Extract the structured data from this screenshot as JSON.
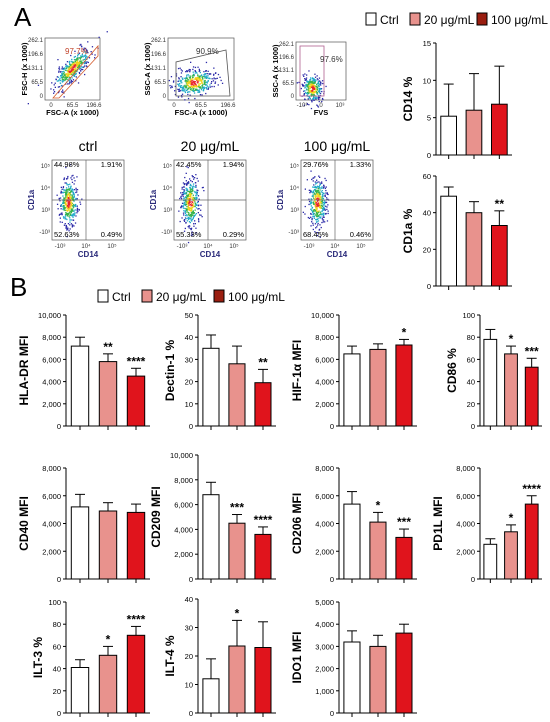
{
  "panel_labels": {
    "a": "A",
    "b": "B"
  },
  "legend": {
    "items": [
      "Ctrl",
      "20 μg/mL",
      "100 μg/mL"
    ],
    "colors": [
      "#ffffff",
      "#e8928d",
      "#e0141c"
    ]
  },
  "flow": {
    "gating": [
      {
        "ylabel": "FSC-H (x 1000)",
        "xlabel": "FSC-A (x 1000)",
        "gate": "97.7%",
        "yticks": [
          "262.1",
          "196.6",
          "131.1",
          "65.5",
          "0"
        ],
        "xticks": [
          "0",
          "65.5",
          "196.6"
        ]
      },
      {
        "ylabel": "SSC-A (x 1000)",
        "xlabel": "FSC-A (x 1000)",
        "gate": "90.9%",
        "yticks": [
          "262.1",
          "196.6",
          "131.1",
          "65.5",
          "0"
        ],
        "xticks": [
          "0",
          "65.5",
          "196.6"
        ]
      },
      {
        "ylabel": "SSC-A (x 1000)",
        "xlabel": "FVS",
        "gate": "97.6%",
        "yticks": [
          "262.1",
          "196.6",
          "131.1",
          "65.5",
          "0"
        ],
        "xticks": [
          "-10³",
          "0",
          "10³"
        ]
      }
    ],
    "quadrants": [
      {
        "title": "ctrl",
        "ul": "44.98%",
        "ur": "1.91%",
        "ll": "52.63%",
        "lr": "0.49%",
        "ylabel": "CD1a",
        "xlabel": "CD14"
      },
      {
        "title": "20 μg/mL",
        "ul": "42.45%",
        "ur": "1.94%",
        "ll": "55.33%",
        "lr": "0.29%",
        "ylabel": "CD1a",
        "xlabel": "CD14"
      },
      {
        "title": "100 μg/mL",
        "ul": "29.76%",
        "ur": "1.33%",
        "ll": "68.45%",
        "lr": "0.46%",
        "ylabel": "CD1a",
        "xlabel": "CD14"
      }
    ],
    "quad_ticks": {
      "x": [
        "-10³",
        "10⁴",
        "10⁵"
      ],
      "y": [
        "10⁵",
        "10⁴",
        "10³",
        "-10³"
      ]
    }
  },
  "chart_data": [
    {
      "type": "bar",
      "ylabel": "CD14 %",
      "ylim": [
        0,
        15
      ],
      "yticks": [
        0,
        5,
        10,
        15
      ],
      "values": [
        5.2,
        6.0,
        6.8
      ],
      "errors": [
        4.3,
        4.9,
        5.1
      ],
      "sig": [
        "",
        "",
        ""
      ]
    },
    {
      "type": "bar",
      "ylabel": "CD1a %",
      "ylim": [
        0,
        60
      ],
      "yticks": [
        0,
        20,
        40,
        60
      ],
      "values": [
        49,
        40,
        33
      ],
      "errors": [
        5,
        6,
        8
      ],
      "sig": [
        "",
        "",
        "**"
      ]
    },
    {
      "type": "bar",
      "ylabel": "HLA-DR MFI",
      "ylim": [
        0,
        10000
      ],
      "yticks": [
        0,
        2000,
        4000,
        6000,
        8000,
        10000
      ],
      "values": [
        7200,
        5800,
        4500
      ],
      "errors": [
        800,
        700,
        700
      ],
      "sig": [
        "",
        "**",
        "****"
      ]
    },
    {
      "type": "bar",
      "ylabel": "Dectin-1 %",
      "ylim": [
        0,
        50
      ],
      "yticks": [
        0,
        10,
        20,
        30,
        40,
        50
      ],
      "values": [
        35,
        28,
        19.5
      ],
      "errors": [
        6,
        8,
        6
      ],
      "sig": [
        "",
        "",
        "**"
      ]
    },
    {
      "type": "bar",
      "ylabel": "HIF-1α MFI",
      "ylim": [
        0,
        10000
      ],
      "yticks": [
        0,
        2000,
        4000,
        6000,
        8000,
        10000
      ],
      "values": [
        6500,
        6900,
        7300
      ],
      "errors": [
        700,
        500,
        500
      ],
      "sig": [
        "",
        "",
        "*"
      ]
    },
    {
      "type": "bar",
      "ylabel": "CD86 %",
      "ylim": [
        0,
        100
      ],
      "yticks": [
        0,
        20,
        40,
        60,
        80,
        100
      ],
      "values": [
        78,
        65,
        53
      ],
      "errors": [
        9,
        7,
        8
      ],
      "sig": [
        "",
        "*",
        "***"
      ]
    },
    {
      "type": "bar",
      "ylabel": "CD40 MFI",
      "ylim": [
        0,
        8000
      ],
      "yticks": [
        0,
        2000,
        4000,
        6000,
        8000
      ],
      "values": [
        5200,
        4900,
        4800
      ],
      "errors": [
        900,
        600,
        600
      ],
      "sig": [
        "",
        "",
        ""
      ]
    },
    {
      "type": "bar",
      "ylabel": "CD209 MFI",
      "ylim": [
        0,
        10000
      ],
      "yticks": [
        0,
        2000,
        4000,
        6000,
        8000,
        10000
      ],
      "values": [
        6800,
        4500,
        3600
      ],
      "errors": [
        1000,
        700,
        600
      ],
      "sig": [
        "",
        "***",
        "****"
      ]
    },
    {
      "type": "bar",
      "ylabel": "CD206 MFI",
      "ylim": [
        0,
        8000
      ],
      "yticks": [
        0,
        2000,
        4000,
        6000,
        8000
      ],
      "values": [
        5400,
        4100,
        3000
      ],
      "errors": [
        900,
        700,
        600
      ],
      "sig": [
        "",
        "*",
        "***"
      ]
    },
    {
      "type": "bar",
      "ylabel": "PD1L MFI",
      "ylim": [
        0,
        8000
      ],
      "yticks": [
        0,
        2000,
        4000,
        6000,
        8000
      ],
      "values": [
        2500,
        3400,
        5400
      ],
      "errors": [
        400,
        500,
        600
      ],
      "sig": [
        "",
        "*",
        "****"
      ]
    },
    {
      "type": "bar",
      "ylabel": "ILT-3 %",
      "ylim": [
        0,
        100
      ],
      "yticks": [
        0,
        20,
        40,
        60,
        80,
        100
      ],
      "values": [
        41,
        52,
        70
      ],
      "errors": [
        7,
        8,
        8
      ],
      "sig": [
        "",
        "*",
        "****"
      ]
    },
    {
      "type": "bar",
      "ylabel": "ILT-4 %",
      "ylim": [
        0,
        40
      ],
      "yticks": [
        0,
        10,
        20,
        30,
        40
      ],
      "values": [
        12,
        23.5,
        23
      ],
      "errors": [
        7,
        9,
        9
      ],
      "sig": [
        "",
        "*",
        ""
      ]
    },
    {
      "type": "bar",
      "ylabel": "IDO1 MFI",
      "ylim": [
        0,
        5000
      ],
      "yticks": [
        0,
        1000,
        2000,
        3000,
        4000,
        5000
      ],
      "values": [
        3200,
        3000,
        3600
      ],
      "errors": [
        500,
        500,
        400
      ],
      "sig": [
        "",
        "",
        ""
      ]
    }
  ]
}
